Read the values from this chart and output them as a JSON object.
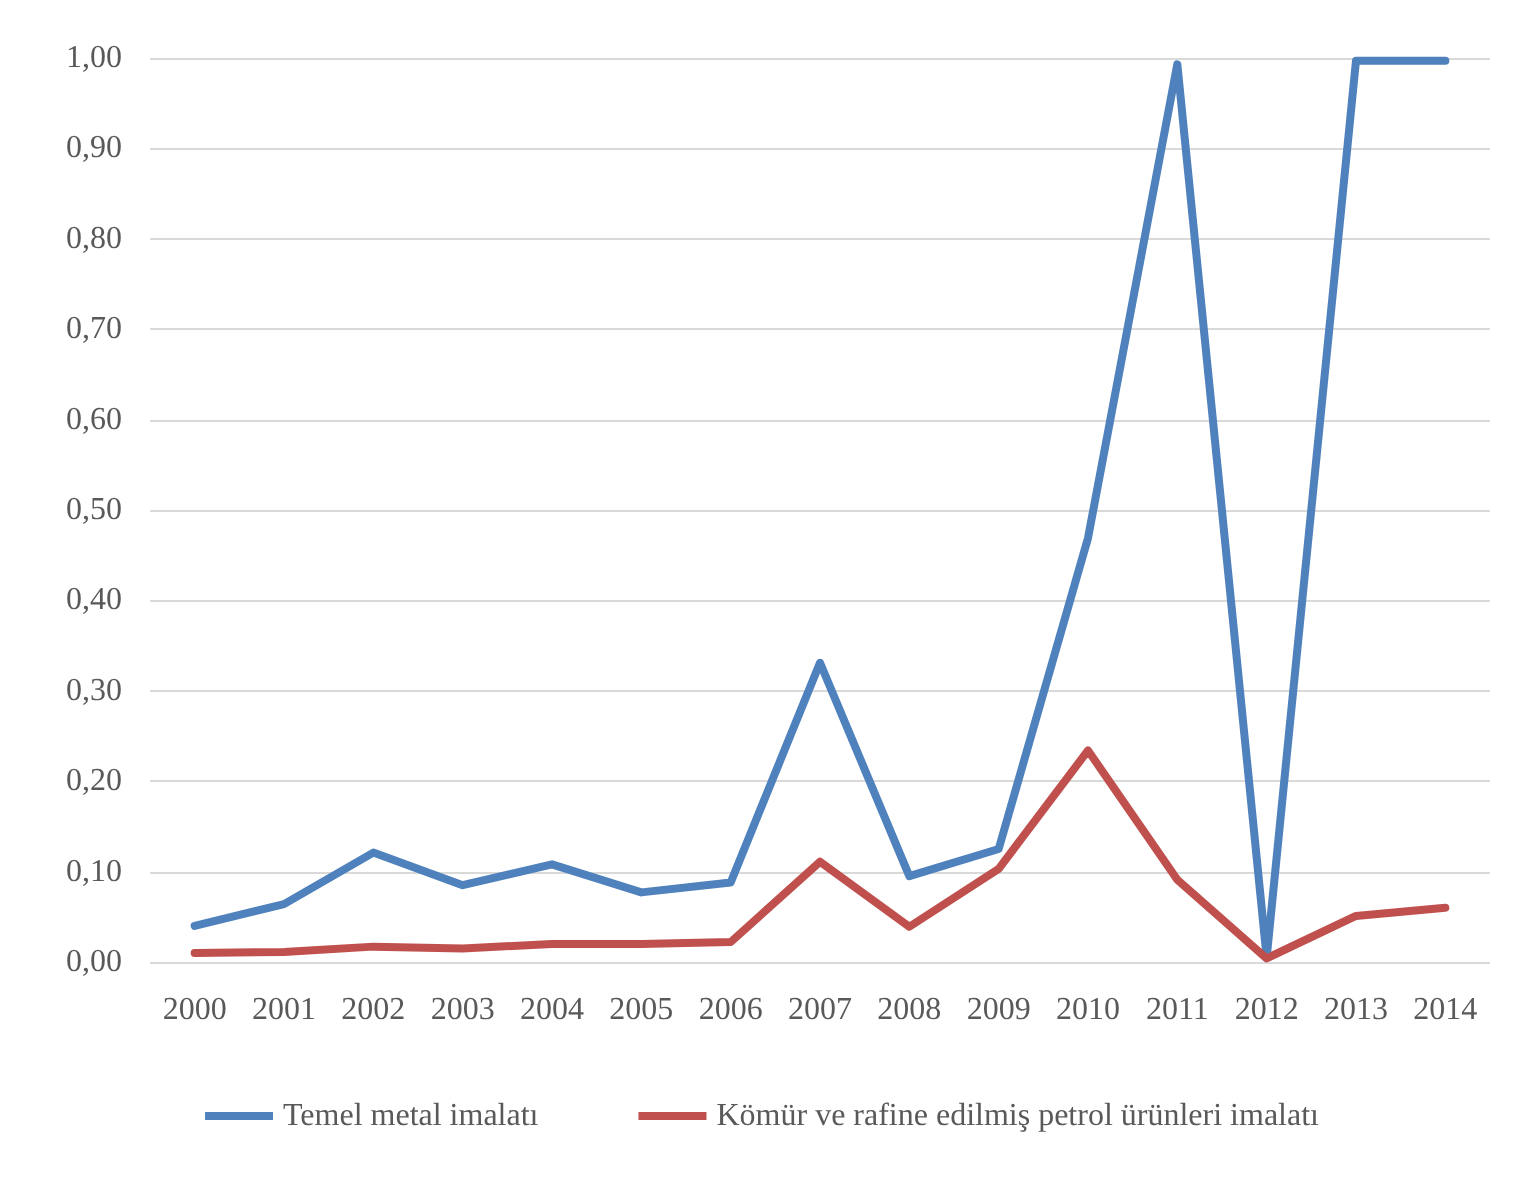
{
  "chart_data": {
    "type": "line",
    "categories": [
      "2000",
      "2001",
      "2002",
      "2003",
      "2004",
      "2005",
      "2006",
      "2007",
      "2008",
      "2009",
      "2010",
      "2011",
      "2012",
      "2013",
      "2014"
    ],
    "series": [
      {
        "name": "Temel metal imalatı",
        "color": "#4f81bd",
        "values": [
          0.04,
          0.064,
          0.121,
          0.085,
          0.108,
          0.077,
          0.088,
          0.331,
          0.095,
          0.125,
          0.469,
          0.993,
          0.005,
          0.997,
          0.997
        ]
      },
      {
        "name": "Kömür ve rafine edilmiş petrol ürünleri imalatı",
        "color": "#c0504d",
        "values": [
          0.01,
          0.011,
          0.017,
          0.015,
          0.02,
          0.02,
          0.022,
          0.111,
          0.039,
          0.103,
          0.234,
          0.091,
          0.004,
          0.051,
          0.06
        ]
      }
    ],
    "ylim": [
      0,
      1
    ],
    "yticks": [
      {
        "value": 0,
        "label": "0,00"
      },
      {
        "value": 0.1,
        "label": "0,10"
      },
      {
        "value": 0.2,
        "label": "0,20"
      },
      {
        "value": 0.3,
        "label": "0,30"
      },
      {
        "value": 0.4,
        "label": "0,40"
      },
      {
        "value": 0.5,
        "label": "0,50"
      },
      {
        "value": 0.6,
        "label": "0,60"
      },
      {
        "value": 0.7,
        "label": "0,70"
      },
      {
        "value": 0.8,
        "label": "0,80"
      },
      {
        "value": 0.9,
        "label": "0,90"
      },
      {
        "value": 1,
        "label": "1,00"
      }
    ],
    "grid": "y",
    "legend": "bottom",
    "marker": "none",
    "line_style": "solid"
  }
}
